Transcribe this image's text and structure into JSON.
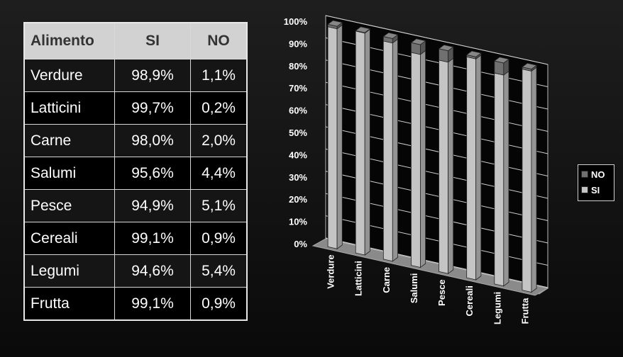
{
  "table": {
    "headers": [
      "Alimento",
      "SI",
      "NO"
    ],
    "rows": [
      [
        "Verdure",
        "98,9%",
        "1,1%"
      ],
      [
        "Latticini",
        "99,7%",
        "0,2%"
      ],
      [
        "Carne",
        "98,0%",
        "2,0%"
      ],
      [
        "Salumi",
        "95,6%",
        "4,4%"
      ],
      [
        "Pesce",
        "94,9%",
        "5,1%"
      ],
      [
        "Cereali",
        "99,1%",
        "0,9%"
      ],
      [
        "Legumi",
        "94,6%",
        "5,4%"
      ],
      [
        "Frutta",
        "99,1%",
        "0,9%"
      ]
    ]
  },
  "chart_data": {
    "type": "bar",
    "stacked": true,
    "style": "3d",
    "categories": [
      "Verdure",
      "Latticini",
      "Carne",
      "Salumi",
      "Pesce",
      "Cereali",
      "Legumi",
      "Frutta"
    ],
    "series": [
      {
        "name": "SI",
        "values": [
          98.9,
          99.7,
          98.0,
          95.6,
          94.9,
          99.1,
          94.6,
          99.1
        ],
        "color": "#c4c4c4"
      },
      {
        "name": "NO",
        "values": [
          1.1,
          0.2,
          2.0,
          4.4,
          5.1,
          0.9,
          5.4,
          0.9
        ],
        "color": "#707070"
      }
    ],
    "y_ticks": [
      "0%",
      "10%",
      "20%",
      "30%",
      "40%",
      "50%",
      "60%",
      "70%",
      "80%",
      "90%",
      "100%"
    ],
    "ylim": [
      0,
      100
    ],
    "grid": true,
    "legend": "right"
  },
  "legend": {
    "items": [
      {
        "label": "NO",
        "color": "#707070"
      },
      {
        "label": "SI",
        "color": "#c4c4c4"
      }
    ]
  }
}
